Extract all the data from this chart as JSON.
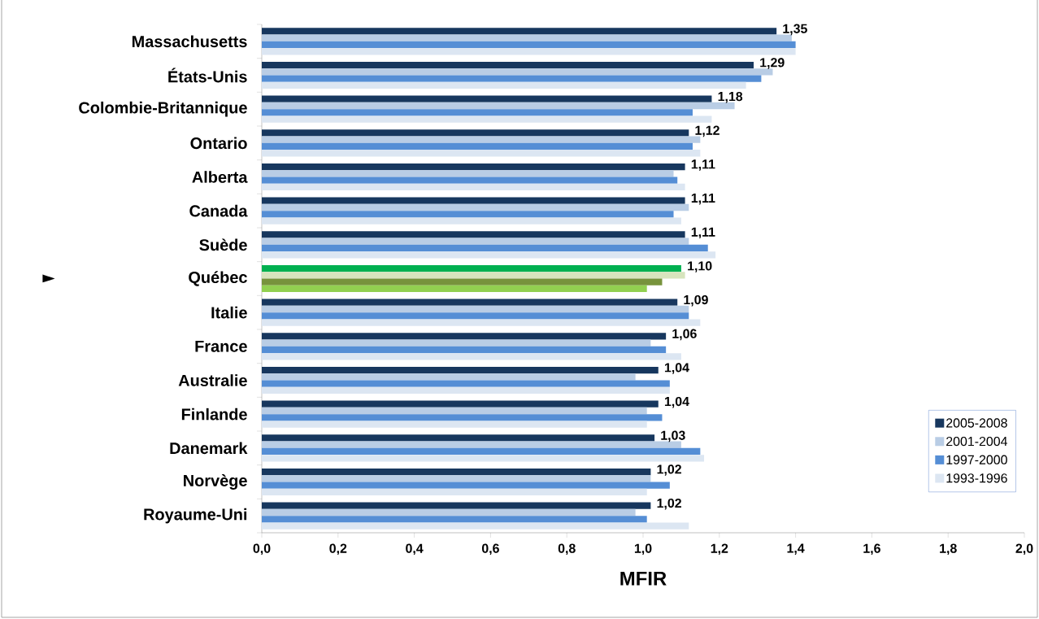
{
  "chart_data": {
    "type": "bar",
    "orientation": "horizontal",
    "xlabel": "MFIR",
    "categories": [
      "Massachusetts",
      "États-Unis",
      "Colombie-Britannique",
      "Ontario",
      "Alberta",
      "Canada",
      "Suède",
      "Québec",
      "Italie",
      "France",
      "Australie",
      "Finlande",
      "Danemark",
      "Norvège",
      "Royaume-Uni"
    ],
    "series": [
      {
        "name": "2005-2008",
        "color": "#17375e",
        "colors": [
          "#17375e",
          "#17375e",
          "#17375e",
          "#17375e",
          "#17375e",
          "#17375e",
          "#17375e",
          "#00b050",
          "#17375e",
          "#17375e",
          "#17375e",
          "#17375e",
          "#17375e",
          "#17375e",
          "#17375e"
        ],
        "values": [
          1.35,
          1.29,
          1.18,
          1.12,
          1.11,
          1.11,
          1.11,
          1.1,
          1.09,
          1.06,
          1.04,
          1.04,
          1.03,
          1.02,
          1.02
        ],
        "value_labels": [
          "1,35",
          "1,29",
          "1,18",
          "1,12",
          "1,11",
          "1,11",
          "1,11",
          "1,10",
          "1,09",
          "1,06",
          "1,04",
          "1,04",
          "1,03",
          "1,02",
          "1,02"
        ]
      },
      {
        "name": "2001-2004",
        "color": "#b9cde5",
        "colors": [
          "#b9cde5",
          "#b9cde5",
          "#b9cde5",
          "#b9cde5",
          "#b9cde5",
          "#b9cde5",
          "#b9cde5",
          "#d7e4bd",
          "#b9cde5",
          "#b9cde5",
          "#b9cde5",
          "#b9cde5",
          "#b9cde5",
          "#b9cde5",
          "#b9cde5"
        ],
        "values": [
          1.39,
          1.34,
          1.24,
          1.15,
          1.08,
          1.12,
          1.12,
          1.11,
          1.12,
          1.02,
          0.98,
          1.01,
          1.1,
          1.02,
          0.98
        ]
      },
      {
        "name": "1997-2000",
        "color": "#558ed5",
        "colors": [
          "#558ed5",
          "#558ed5",
          "#558ed5",
          "#558ed5",
          "#558ed5",
          "#558ed5",
          "#558ed5",
          "#77933c",
          "#558ed5",
          "#558ed5",
          "#558ed5",
          "#558ed5",
          "#558ed5",
          "#558ed5",
          "#558ed5"
        ],
        "values": [
          1.4,
          1.31,
          1.13,
          1.13,
          1.09,
          1.08,
          1.17,
          1.05,
          1.12,
          1.06,
          1.07,
          1.05,
          1.15,
          1.07,
          1.01
        ]
      },
      {
        "name": "1993-1996",
        "color": "#dce6f2",
        "colors": [
          "#dce6f2",
          "#dce6f2",
          "#dce6f2",
          "#dce6f2",
          "#dce6f2",
          "#dce6f2",
          "#dce6f2",
          "#92d050",
          "#dce6f2",
          "#dce6f2",
          "#dce6f2",
          "#dce6f2",
          "#dce6f2",
          "#dce6f2",
          "#dce6f2"
        ],
        "values": [
          1.4,
          1.27,
          1.18,
          1.15,
          1.11,
          1.1,
          1.19,
          1.01,
          1.15,
          1.1,
          1.07,
          1.01,
          1.16,
          1.01,
          1.12
        ]
      }
    ],
    "xlim": [
      0,
      2.0
    ],
    "xticks": [
      {
        "value": 0,
        "label": "0,0"
      },
      {
        "value": 0.2,
        "label": "0,2"
      },
      {
        "value": 0.4,
        "label": "0,4"
      },
      {
        "value": 0.6,
        "label": "0,6"
      },
      {
        "value": 0.8,
        "label": "0,8"
      },
      {
        "value": 1.0,
        "label": "1,0"
      },
      {
        "value": 1.2,
        "label": "1,2"
      },
      {
        "value": 1.4,
        "label": "1,4"
      },
      {
        "value": 1.6,
        "label": "1,6"
      },
      {
        "value": 1.8,
        "label": "1,8"
      },
      {
        "value": 2.0,
        "label": "2,0"
      }
    ],
    "legend": "bottom right",
    "annotations": [
      "►"
    ]
  }
}
